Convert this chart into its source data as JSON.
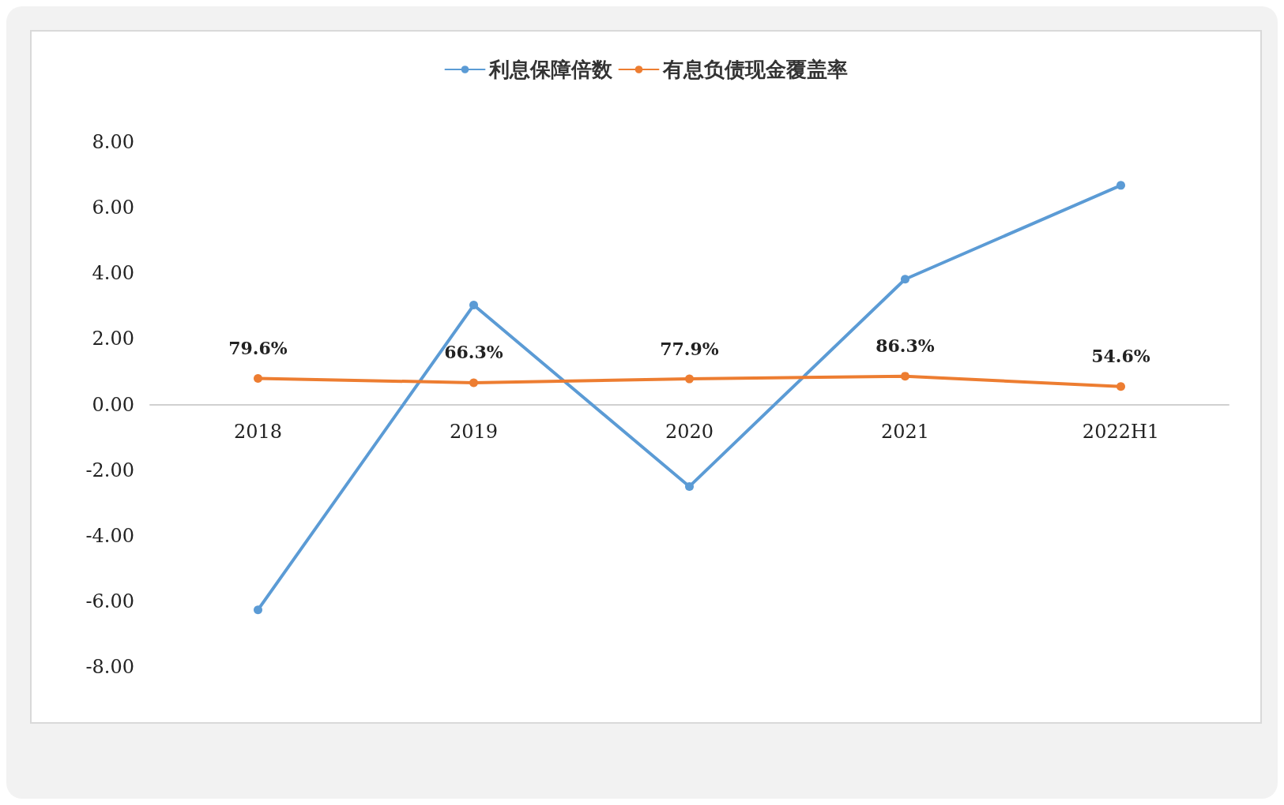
{
  "chart_data": {
    "type": "line",
    "categories": [
      "2018",
      "2019",
      "2020",
      "2021",
      "2022H1"
    ],
    "series": [
      {
        "name": "利息保障倍数",
        "color": "#5b9bd5",
        "values": [
          -6.26,
          3.03,
          -2.5,
          3.82,
          6.68
        ]
      },
      {
        "name": "有息负债现金覆盖率",
        "color": "#ed7d31",
        "values": [
          0.796,
          0.663,
          0.779,
          0.863,
          0.546
        ],
        "value_labels": [
          "79.6%",
          "66.3%",
          "77.9%",
          "86.3%",
          "54.6%"
        ]
      }
    ],
    "ylim": [
      -8,
      8
    ],
    "yticks": [
      {
        "value": -8,
        "label": "-8.00"
      },
      {
        "value": -6,
        "label": "-6.00"
      },
      {
        "value": -4,
        "label": "-4.00"
      },
      {
        "value": -2,
        "label": "-2.00"
      },
      {
        "value": 0,
        "label": "0.00"
      },
      {
        "value": 2,
        "label": "2.00"
      },
      {
        "value": 4,
        "label": "4.00"
      },
      {
        "value": 6,
        "label": "6.00"
      },
      {
        "value": 8,
        "label": "8.00"
      }
    ],
    "grid": false,
    "legend": "top",
    "marker": "circle",
    "line_style": "solid"
  }
}
